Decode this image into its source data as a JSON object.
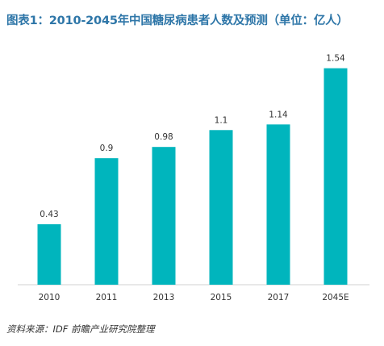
{
  "chart_data": {
    "type": "bar",
    "title": "图表1：2010-2045年中国糖尿病患者人数及预测（单位：亿人）",
    "categories": [
      "2010",
      "2011",
      "2013",
      "2015",
      "2017",
      "2045E"
    ],
    "values": [
      0.43,
      0.9,
      0.98,
      1.1,
      1.14,
      1.54
    ],
    "value_labels": [
      "0.43",
      "0.9",
      "0.98",
      "1.1",
      "1.14",
      "1.54"
    ],
    "xlabel": "",
    "ylabel": "",
    "ylim": [
      0,
      1.75
    ],
    "grid": false,
    "legend": "none",
    "bar_color": "#00b5bd"
  },
  "source": "资料来源：IDF  前瞻产业研究院整理"
}
